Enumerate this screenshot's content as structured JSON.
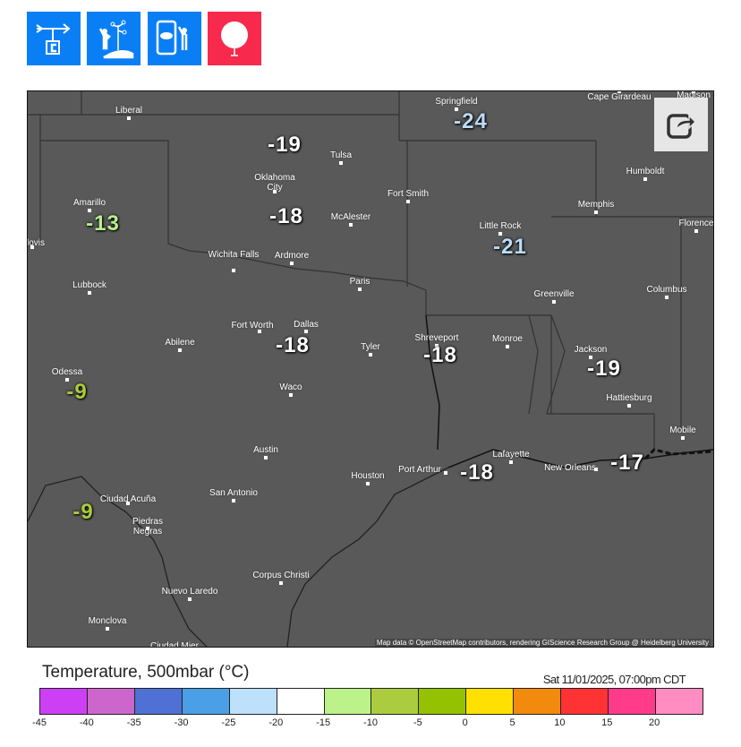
{
  "toolbar": {
    "buttons": [
      {
        "name": "wind-vane-temperature-icon",
        "color": "#0a7ff5"
      },
      {
        "name": "weather-observer-icon",
        "color": "#0a7ff5"
      },
      {
        "name": "phone-weather-icon",
        "color": "#0a7ff5"
      },
      {
        "name": "weather-balloon-icon",
        "color": "#f72a4d"
      }
    ]
  },
  "map": {
    "attribution": "Map data © OpenStreetMap contributors, rendering GIScience Research Group @ Heidelberg University",
    "cities": [
      "Liberal",
      "Springfield",
      "Cape Girardeau",
      "Madison",
      "Tulsa",
      "Oklahoma City",
      "Humboldt",
      "Fort Smith",
      "Amarillo",
      "McAlester",
      "Little Rock",
      "Memphis",
      "Florence",
      "lovis",
      "Wichita Falls",
      "Ardmore",
      "Lubbock",
      "Paris",
      "Greenville",
      "Columbus",
      "Fort Worth",
      "Dallas",
      "Abilene",
      "Tyler",
      "Shreveport",
      "Monroe",
      "Jackson",
      "Odessa",
      "Waco",
      "Hattiesburg",
      "Mobile",
      "Austin",
      "Lafayette",
      "Port Arthur",
      "New Orleans",
      "Houston",
      "Ciudad Acuña",
      "Piedras Negras",
      "San Antonio",
      "Corpus Christi",
      "Nuevo Laredo",
      "Monclova",
      "Ciudad Mier"
    ],
    "temperatures": [
      {
        "value": "-24",
        "color": "#bcdcfa"
      },
      {
        "value": "-19",
        "color": "#ffffff"
      },
      {
        "value": "-13",
        "color": "#b8f08a"
      },
      {
        "value": "-18",
        "color": "#ffffff"
      },
      {
        "value": "-21",
        "color": "#bcdcfa"
      },
      {
        "value": "-18",
        "color": "#ffffff"
      },
      {
        "value": "-18",
        "color": "#ffffff"
      },
      {
        "value": "-19",
        "color": "#ffffff"
      },
      {
        "value": "-9",
        "color": "#aacc3a"
      },
      {
        "value": "-18",
        "color": "#ffffff"
      },
      {
        "value": "-17",
        "color": "#ffffff"
      },
      {
        "value": "-9",
        "color": "#aacc3a"
      }
    ]
  },
  "legend": {
    "title": "Temperature, 500mbar (°C)",
    "time": "Sat 11/01/2025, 07:00pm CDT",
    "colors": [
      "#cc3ff5",
      "#cc66cc",
      "#4f70d4",
      "#4a9fe6",
      "#bde0fb",
      "#ffffff",
      "#bbf28a",
      "#abcc3e",
      "#94c200",
      "#ffe000",
      "#f28a0e",
      "#ff3333",
      "#ff3b8a",
      "#ff8dc2"
    ],
    "ticks": [
      "-45",
      "-40",
      "-35",
      "-30",
      "-25",
      "-20",
      "-15",
      "-10",
      "-5",
      "0",
      "5",
      "10",
      "15",
      "20"
    ]
  }
}
